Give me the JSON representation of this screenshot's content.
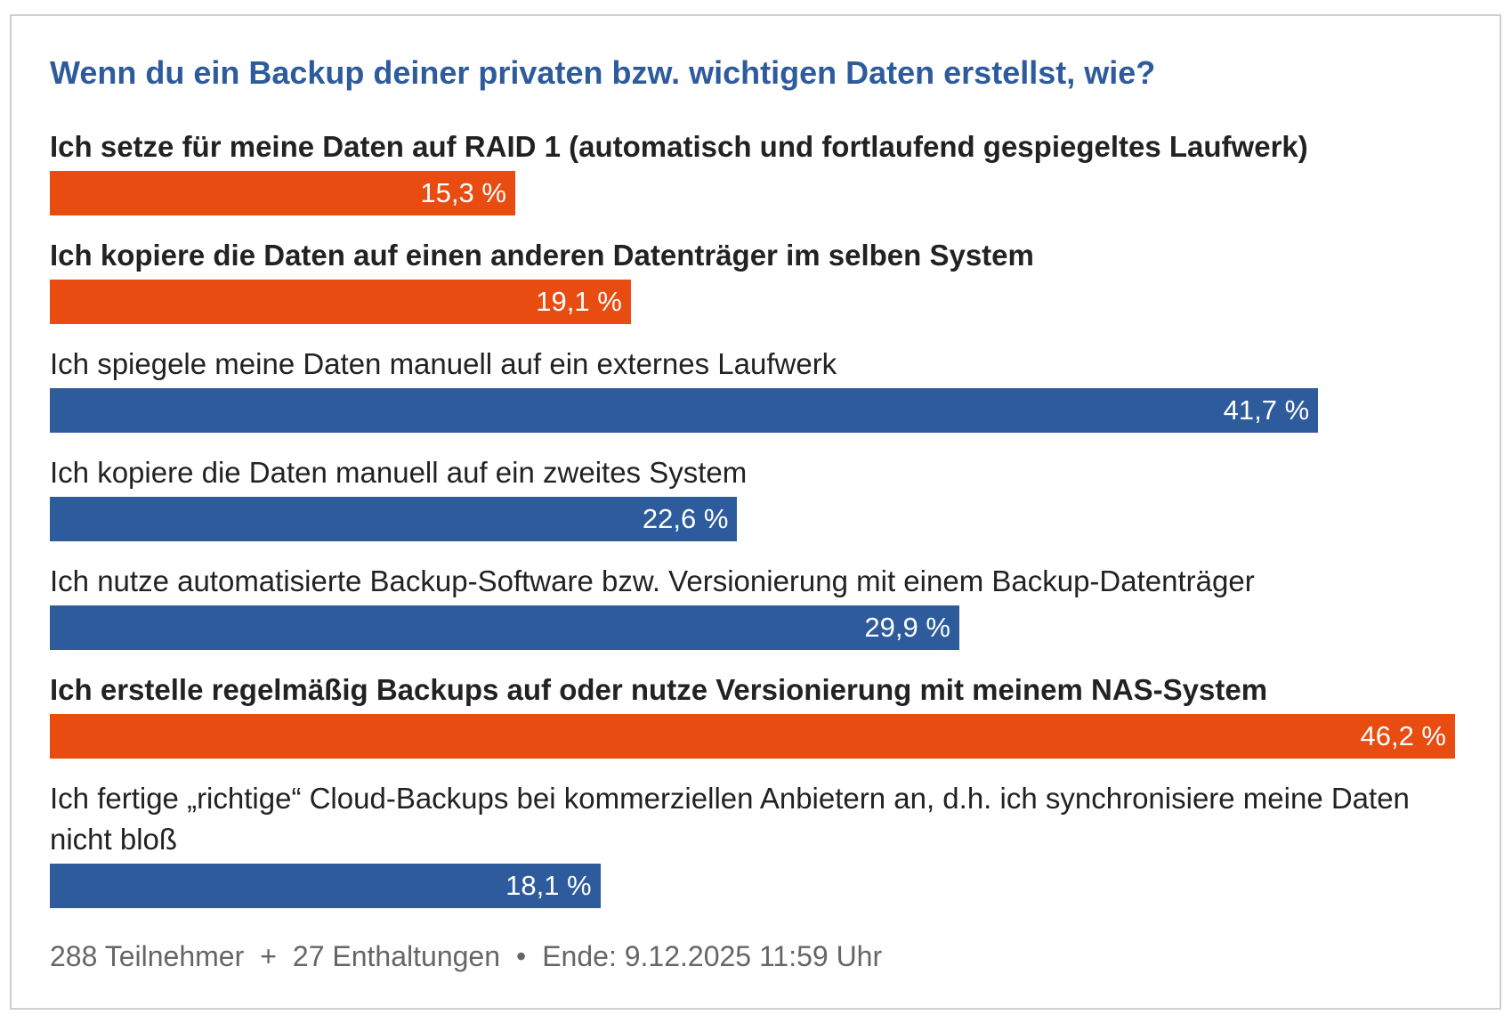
{
  "chart_data": {
    "type": "bar",
    "orientation": "horizontal",
    "title": "Wenn du ein Backup deiner privaten bzw. wichtigen Daten erstellst, wie?",
    "categories": [
      "Ich setze für meine Daten auf RAID 1 (automatisch und fortlaufend gespiegeltes Laufwerk)",
      "Ich kopiere die Daten auf einen anderen Datenträger im selben System",
      "Ich spiegele meine Daten manuell auf ein externes Laufwerk",
      "Ich kopiere die Daten manuell auf ein zweites System",
      "Ich nutze automatisierte Backup-Software bzw. Versionierung mit einem Backup-Datenträger",
      "Ich erstelle regelmäßig Backups auf oder nutze Versionierung mit meinem NAS-System",
      "Ich fertige „richtige“ Cloud-Backups bei kommerziellen Anbietern an, d.h. ich synchronisiere meine Daten nicht bloß"
    ],
    "values": [
      15.3,
      19.1,
      41.7,
      22.6,
      29.9,
      46.2,
      18.1
    ],
    "value_labels": [
      "15,3 %",
      "19,1 %",
      "41,7 %",
      "22,6 %",
      "29,9 %",
      "46,2 %",
      "18,1 %"
    ],
    "colors": [
      "#e84c10",
      "#e84c10",
      "#2d5b9c",
      "#2d5b9c",
      "#2d5b9c",
      "#e84c10",
      "#2d5b9c"
    ],
    "bold": [
      true,
      true,
      false,
      false,
      false,
      true,
      false
    ],
    "footer": [
      "288 Teilnehmer",
      "+",
      "27 Enthaltungen",
      "•",
      "Ende: 9.12.2025 11:59 Uhr"
    ]
  }
}
